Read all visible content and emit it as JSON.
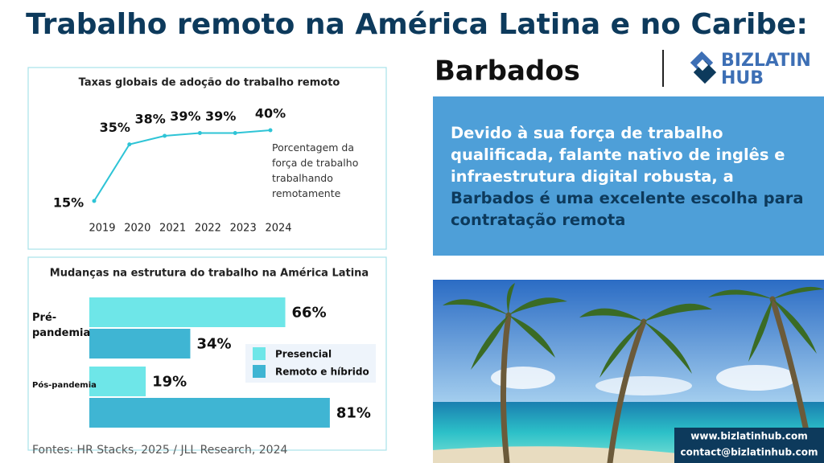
{
  "header": {
    "title": "Trabalho remoto na América Latina e no Caribe:",
    "country": "Barbados",
    "brand_line1": "BIZLATIN",
    "brand_line2": "HUB"
  },
  "panel": {
    "text": "Devido à sua força de trabalho qualificada, falante nativo de inglês e infraestrutura digital robusta, a",
    "highlight": "Barbados é uma excelente escolha para contratação remota"
  },
  "footer": {
    "sources": "Fontes: HR Stacks, 2025 / JLL Research, 2024",
    "website": "www.bizlatinhub.com",
    "email": "contact@bizlatinhub.com"
  },
  "chart_data": [
    {
      "type": "line",
      "title": "Taxas globais de adoção do trabalho remoto",
      "x": [
        2019,
        2020,
        2021,
        2022,
        2023,
        2024
      ],
      "values": [
        15,
        35,
        38,
        39,
        39,
        40
      ],
      "value_labels": [
        "15%",
        "35%",
        "38%",
        "39%",
        "39%",
        "40%"
      ],
      "color": "#2ec4d6",
      "annotation": "Porcentagem da força de trabalho trabalhando remotamente"
    },
    {
      "type": "hbar",
      "title": "Mudanças na estrutura do trabalho na América Latina",
      "categories": [
        "Pré-pandemia",
        "Pós-pandemia"
      ],
      "series": [
        {
          "name": "Presencial",
          "color": "#6ee6e8",
          "values": [
            66,
            19
          ],
          "value_labels": [
            "66%",
            "19%"
          ]
        },
        {
          "name": "Remoto e híbrido",
          "color": "#3fb5d3",
          "values": [
            34,
            81
          ],
          "value_labels": [
            "34%",
            "81%"
          ]
        }
      ]
    }
  ]
}
